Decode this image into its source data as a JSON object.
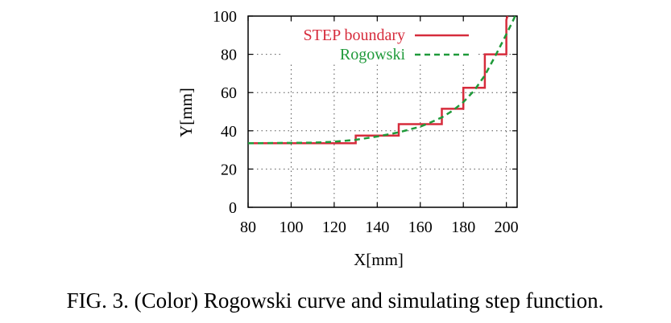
{
  "caption": "FIG. 3. (Color) Rogowski curve and simulating step function.",
  "chart_data": {
    "type": "line",
    "xlabel": "X[mm]",
    "ylabel": "Y[mm]",
    "xlim": [
      80,
      205
    ],
    "ylim": [
      0,
      100
    ],
    "xticks": [
      80,
      100,
      120,
      140,
      160,
      180,
      200
    ],
    "yticks": [
      0,
      20,
      40,
      60,
      80,
      100
    ],
    "grid": true,
    "legend_position": "top-right",
    "series": [
      {
        "name": "STEP boundary",
        "style": "solid-step",
        "color": "#d62c3c",
        "x": [
          80,
          130,
          130,
          150,
          150,
          170,
          170,
          180,
          180,
          190,
          190,
          200,
          200,
          200.5
        ],
        "y": [
          33.5,
          33.5,
          37.5,
          37.5,
          43.5,
          43.5,
          51.5,
          51.5,
          62.5,
          62.5,
          80,
          80,
          98,
          100
        ]
      },
      {
        "name": "Rogowski",
        "style": "dashed",
        "color": "#1f9a3a",
        "x": [
          80,
          110,
          120,
          130,
          140,
          150,
          160,
          165,
          170,
          175,
          180,
          185,
          190,
          195,
          200,
          203,
          204.5
        ],
        "y": [
          33.5,
          33.8,
          34.3,
          35.3,
          37.0,
          39.2,
          42.2,
          44.5,
          47.0,
          50.5,
          55.0,
          61.0,
          69.0,
          79.5,
          90.5,
          97.5,
          101
        ]
      }
    ]
  }
}
